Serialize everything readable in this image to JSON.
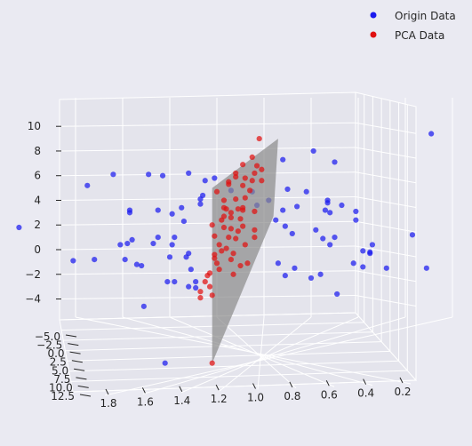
{
  "chart_data": {
    "type": "scatter",
    "projection": "3d",
    "title": "",
    "xlabel": "",
    "ylabel": "",
    "zlabel": "",
    "grid": true,
    "legend": {
      "placement": "top-right",
      "entries": [
        "Origin Data",
        "PCA Data"
      ]
    },
    "colors": {
      "background": "#eaeaf2",
      "pane": "#e4e4ec",
      "grid": "#ffffff",
      "origin": "#1a1aee",
      "pca": "#e01010",
      "plane": "#8a8a8a"
    },
    "axes": {
      "x": {
        "ticks": [
          1.8,
          1.6,
          1.4,
          1.2,
          1.0,
          0.8,
          0.6,
          0.4,
          0.2
        ],
        "tick_labels": [
          "1.8",
          "1.6",
          "1.4",
          "1.2",
          "1.0",
          "0.8",
          "0.6",
          "0.4",
          "0.2"
        ]
      },
      "y": {
        "ticks": [
          -5.0,
          -2.5,
          0.0,
          2.5,
          5.0,
          7.5,
          10.0,
          12.5
        ],
        "tick_labels": [
          "−5.0",
          "−2.5",
          "0.0",
          "2.5",
          "5.0",
          "7.5",
          "10.0",
          "12.5"
        ]
      },
      "z": {
        "ticks": [
          10,
          8,
          6,
          4,
          2,
          0,
          -2,
          -4
        ],
        "tick_labels": [
          "10",
          "8",
          "6",
          "4",
          "2",
          "0",
          "−2",
          "−4"
        ]
      }
    },
    "series": [
      {
        "name": "Origin Data",
        "points": [
          {
            "x": 0.29,
            "z": 9.4
          },
          {
            "x": 0.7,
            "z": 7.1
          },
          {
            "x": 0.79,
            "z": 8.0
          },
          {
            "x": 0.92,
            "z": 7.3
          },
          {
            "x": 1.32,
            "z": 6.2
          },
          {
            "x": 1.25,
            "z": 5.6
          },
          {
            "x": 1.21,
            "z": 5.8
          },
          {
            "x": 1.43,
            "z": 6.0
          },
          {
            "x": 1.49,
            "z": 6.1
          },
          {
            "x": 1.64,
            "z": 6.1
          },
          {
            "x": 1.75,
            "z": 5.2
          },
          {
            "x": 1.14,
            "z": 4.8
          },
          {
            "x": 1.26,
            "z": 4.4
          },
          {
            "x": 1.27,
            "z": 4.1
          },
          {
            "x": 1.05,
            "z": 4.7
          },
          {
            "x": 0.9,
            "z": 4.9
          },
          {
            "x": 0.82,
            "z": 4.7
          },
          {
            "x": 0.98,
            "z": 4.0
          },
          {
            "x": 1.03,
            "z": 3.6
          },
          {
            "x": 1.35,
            "z": 3.4
          },
          {
            "x": 1.27,
            "z": 3.7
          },
          {
            "x": 1.57,
            "z": 3.2
          },
          {
            "x": 1.57,
            "z": 3.0
          },
          {
            "x": 1.45,
            "z": 3.2
          },
          {
            "x": 1.39,
            "z": 2.9
          },
          {
            "x": 0.73,
            "z": 3.8
          },
          {
            "x": 0.74,
            "z": 3.2
          },
          {
            "x": 0.72,
            "z": 3.0
          },
          {
            "x": 0.67,
            "z": 3.6
          },
          {
            "x": 0.61,
            "z": 3.1
          },
          {
            "x": 0.86,
            "z": 3.5
          },
          {
            "x": 0.92,
            "z": 3.2
          },
          {
            "x": 2.04,
            "z": 1.8
          },
          {
            "x": 1.34,
            "z": 2.3
          },
          {
            "x": 1.38,
            "z": 1.0
          },
          {
            "x": 1.45,
            "z": 1.0
          },
          {
            "x": 1.47,
            "z": 0.5
          },
          {
            "x": 1.39,
            "z": 0.4
          },
          {
            "x": 1.56,
            "z": 0.8
          },
          {
            "x": 1.58,
            "z": 0.5
          },
          {
            "x": 1.61,
            "z": 0.4
          },
          {
            "x": 1.4,
            "z": -0.6
          },
          {
            "x": 1.33,
            "z": -0.6
          },
          {
            "x": 1.32,
            "z": -0.3
          },
          {
            "x": 1.52,
            "z": -1.3
          },
          {
            "x": 1.54,
            "z": -1.2
          },
          {
            "x": 1.59,
            "z": -0.8
          },
          {
            "x": 1.72,
            "z": -0.8
          },
          {
            "x": 1.81,
            "z": -0.9
          },
          {
            "x": 1.31,
            "z": -1.6
          },
          {
            "x": 1.29,
            "z": -2.6
          },
          {
            "x": 1.38,
            "z": -2.6
          },
          {
            "x": 1.32,
            "z": -3.0
          },
          {
            "x": 1.41,
            "z": -2.6
          },
          {
            "x": 1.29,
            "z": -3.1
          },
          {
            "x": 1.51,
            "z": -4.6
          },
          {
            "x": 0.95,
            "z": 2.4
          },
          {
            "x": 0.91,
            "z": 1.9
          },
          {
            "x": 0.88,
            "z": 1.3
          },
          {
            "x": 0.78,
            "z": 1.6
          },
          {
            "x": 0.75,
            "z": 0.9
          },
          {
            "x": 0.7,
            "z": 1.0
          },
          {
            "x": 0.72,
            "z": 0.4
          },
          {
            "x": 0.54,
            "z": 0.4
          },
          {
            "x": 0.58,
            "z": -0.1
          },
          {
            "x": 0.55,
            "z": -0.3
          },
          {
            "x": 0.62,
            "z": -1.1
          },
          {
            "x": 0.58,
            "z": -1.4
          },
          {
            "x": 0.48,
            "z": -1.5
          },
          {
            "x": 0.76,
            "z": -2.0
          },
          {
            "x": 0.8,
            "z": -2.3
          },
          {
            "x": 0.87,
            "z": -1.5
          },
          {
            "x": 0.91,
            "z": -2.1
          },
          {
            "x": 0.94,
            "z": -1.1
          },
          {
            "x": 0.37,
            "z": 1.2
          },
          {
            "x": 0.31,
            "z": -1.5
          },
          {
            "x": 0.69,
            "z": -3.6
          },
          {
            "x": 0.73,
            "z": 4.0
          },
          {
            "x": 0.61,
            "z": 2.4
          },
          {
            "x": 0.55,
            "z": -0.2
          },
          {
            "x": 1.42,
            "z": -9.2
          }
        ]
      },
      {
        "name": "PCA Data",
        "points": [
          {
            "x": 1.02,
            "z": 9.0
          },
          {
            "x": 1.05,
            "z": 7.5
          },
          {
            "x": 1.09,
            "z": 6.9
          },
          {
            "x": 1.03,
            "z": 6.8
          },
          {
            "x": 1.01,
            "z": 6.5
          },
          {
            "x": 1.12,
            "z": 6.2
          },
          {
            "x": 1.04,
            "z": 6.2
          },
          {
            "x": 1.08,
            "z": 5.8
          },
          {
            "x": 1.12,
            "z": 5.9
          },
          {
            "x": 1.05,
            "z": 5.6
          },
          {
            "x": 1.15,
            "z": 5.5
          },
          {
            "x": 1.01,
            "z": 5.6
          },
          {
            "x": 1.09,
            "z": 5.2
          },
          {
            "x": 1.15,
            "z": 5.3
          },
          {
            "x": 1.2,
            "z": 4.7
          },
          {
            "x": 1.17,
            "z": 4.0
          },
          {
            "x": 1.12,
            "z": 4.1
          },
          {
            "x": 1.08,
            "z": 4.2
          },
          {
            "x": 1.17,
            "z": 3.4
          },
          {
            "x": 1.09,
            "z": 3.4
          },
          {
            "x": 1.16,
            "z": 3.3
          },
          {
            "x": 1.11,
            "z": 3.3
          },
          {
            "x": 1.14,
            "z": 3.0
          },
          {
            "x": 1.09,
            "z": 3.2
          },
          {
            "x": 1.04,
            "z": 3.1
          },
          {
            "x": 1.17,
            "z": 2.7
          },
          {
            "x": 1.14,
            "z": 2.6
          },
          {
            "x": 1.1,
            "z": 2.5
          },
          {
            "x": 1.22,
            "z": 2.0
          },
          {
            "x": 1.17,
            "z": 1.8
          },
          {
            "x": 1.14,
            "z": 1.7
          },
          {
            "x": 1.04,
            "z": 1.6
          },
          {
            "x": 1.11,
            "z": 1.5
          },
          {
            "x": 1.21,
            "z": 1.1
          },
          {
            "x": 1.15,
            "z": 1.0
          },
          {
            "x": 1.12,
            "z": 0.9
          },
          {
            "x": 1.04,
            "z": 1.0
          },
          {
            "x": 1.19,
            "z": 0.4
          },
          {
            "x": 1.18,
            "z": -0.1
          },
          {
            "x": 1.21,
            "z": -0.4
          },
          {
            "x": 1.21,
            "z": -0.7
          },
          {
            "x": 1.14,
            "z": -0.8
          },
          {
            "x": 1.2,
            "z": -1.1
          },
          {
            "x": 1.1,
            "z": -1.3
          },
          {
            "x": 1.07,
            "z": -1.1
          },
          {
            "x": 1.19,
            "z": -1.6
          },
          {
            "x": 1.23,
            "z": -1.9
          },
          {
            "x": 1.13,
            "z": -2.0
          },
          {
            "x": 1.25,
            "z": -2.6
          },
          {
            "x": 1.23,
            "z": -3.0
          },
          {
            "x": 1.27,
            "z": -3.4
          },
          {
            "x": 1.27,
            "z": -3.9
          },
          {
            "x": 1.22,
            "z": -3.7
          },
          {
            "x": 1.09,
            "z": 1.9
          },
          {
            "x": 1.06,
            "z": 4.8
          },
          {
            "x": 1.24,
            "z": -2.1
          },
          {
            "x": 1.16,
            "z": 0.1
          },
          {
            "x": 1.08,
            "z": 0.4
          },
          {
            "x": 1.13,
            "z": -0.3
          },
          {
            "x": 1.18,
            "z": 2.4
          },
          {
            "x": 1.22,
            "z": -9.2
          }
        ]
      }
    ],
    "plane": {
      "vertices": [
        {
          "x": 0.94,
          "z": 9.0
        },
        {
          "x": 1.22,
          "z": 5.0
        },
        {
          "x": 1.22,
          "z": -9.2
        },
        {
          "x": 0.96,
          "z": 2.7
        }
      ]
    }
  }
}
